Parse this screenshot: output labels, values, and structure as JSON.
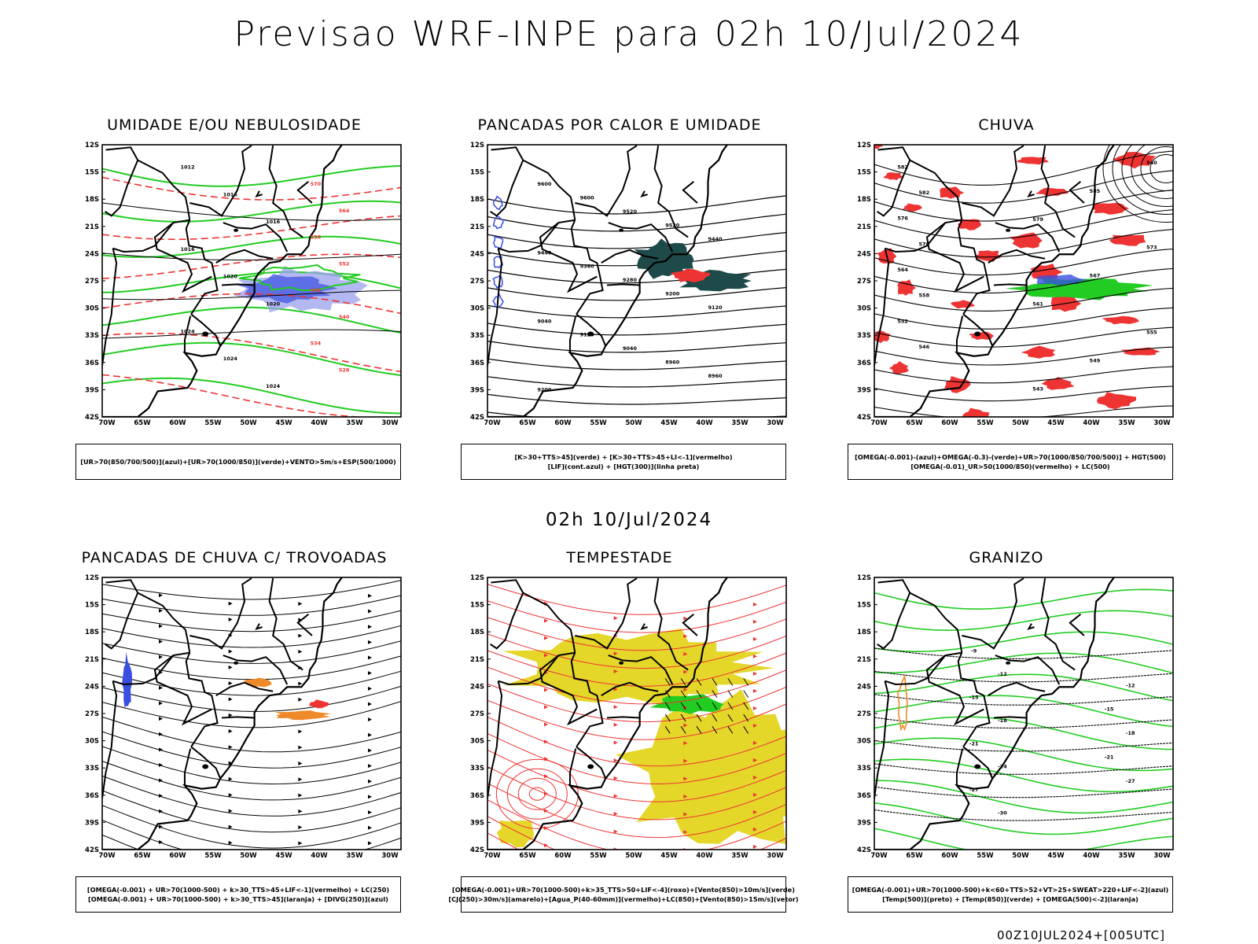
{
  "main_title": "Previsao WRF-INPE  para 02h 10/Jul/2024",
  "mid_date": "02h 10/Jul/2024",
  "footer": "00Z10JUL2024+[005UTC]",
  "axes": {
    "lat_ticks": [
      "12S",
      "15S",
      "18S",
      "21S",
      "24S",
      "27S",
      "30S",
      "33S",
      "36S",
      "39S",
      "42S"
    ],
    "lon_ticks": [
      "70W",
      "65W",
      "60W",
      "55W",
      "50W",
      "45W",
      "40W",
      "35W",
      "30W"
    ]
  },
  "colors": {
    "blue": "#3a4fe0",
    "green": "#22cc22",
    "red": "#ee3333",
    "orange": "#ee8a2a",
    "yellow": "#e5d62a",
    "darkteal": "#1e4a4a",
    "black": "#000000"
  },
  "panels": [
    {
      "title": "UMIDADE E/OU NEBULOSIDADE",
      "legend": [
        "[UR>70(850/700/500)](azul)+[UR>70(1000/850)](verde)+VENTO>5m/s+ESP(500/1000)"
      ],
      "contour_labels": [
        "1012",
        "1016",
        "1016",
        "1016",
        "1020",
        "1020",
        "1024",
        "1024",
        "1024",
        "570",
        "564",
        "558",
        "552",
        "546",
        "540",
        "534",
        "528"
      ]
    },
    {
      "title": "PANCADAS POR CALOR E UMIDADE",
      "legend": [
        "[K>30+TTS>45](verde) + [K>30+TTS>45+LI<-1](vermelho)",
        "[LIF](cont.azul) + [HGT(300)](linha preta)"
      ],
      "contour_labels": [
        "9600",
        "9600",
        "9520",
        "9520",
        "9440",
        "9440",
        "9360",
        "9280",
        "9200",
        "9120",
        "9040",
        "9120",
        "9040",
        "8960",
        "8960",
        "9200"
      ]
    },
    {
      "title": "CHUVA",
      "legend": [
        "[OMEGA(-0.001)-(azul)+OMEGA(-0.3)-(verde)+UR>70(1000/850/700/500)] + HGT(500)",
        "[OMEGA(-0.01)_UR>50(1000/850)(vermelho) + LC(500)"
      ],
      "contour_labels": [
        "582",
        "582",
        "576",
        "570",
        "564",
        "558",
        "552",
        "546",
        "540",
        "585",
        "579",
        "573",
        "567",
        "561",
        "555",
        "549",
        "543"
      ]
    },
    {
      "title": "PANCADAS DE CHUVA C/ TROVOADAS",
      "legend": [
        "[OMEGA(-0.001) + UR>70(1000-500) + k>30_TTS>45+LIF<-1](vermelho) + LC(250)",
        "[OMEGA(-0.001) + UR>70(1000-500) + k>30_TTS>45](laranja) + [DIVG(250)](azul)"
      ],
      "contour_labels": []
    },
    {
      "title": "TEMPESTADE",
      "legend": [
        "[OMEGA(-0.001)+UR>70(1000-500)+k>35_TTS>50+LIF<-4](roxo)+[Vento(850)>10m/s](verde)",
        "[CJ(250)>30m/s](amarelo)+[Agua_P(40-60mm)](vermelho)+LC(850)+[Vento(850)>15m/s](vetor)"
      ],
      "contour_labels": []
    },
    {
      "title": "GRANIZO",
      "legend": [
        "[OMEGA(-0.001)+UR>70(1000-500)+k<60+TTS>52+VT>25+SWEAT>220+LIF<-2](azul)",
        "[Temp(500)](preto) + [Temp(850)](verde) + [OMEGA(500)<-2](laranja)"
      ],
      "contour_labels": [
        "-9",
        "-12",
        "-15",
        "-18",
        "-21",
        "-24",
        "-27",
        "-30",
        "-12",
        "-15",
        "-18",
        "-21",
        "-27"
      ]
    }
  ]
}
